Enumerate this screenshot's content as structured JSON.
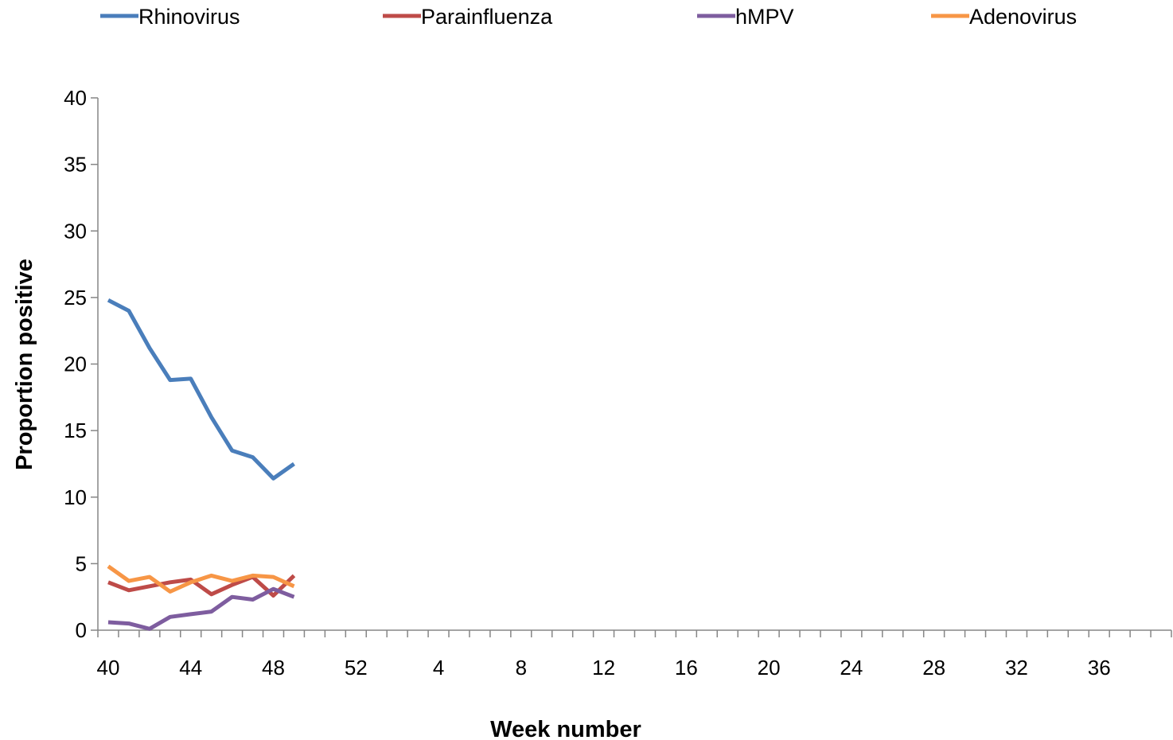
{
  "chart_data": {
    "type": "line",
    "xlabel": "Week number",
    "ylabel": "Proportion positive",
    "ylim": [
      0,
      40
    ],
    "yticks": [
      "0",
      "5",
      "10",
      "15",
      "20",
      "25",
      "30",
      "35",
      "40"
    ],
    "xtick_labels": [
      "40",
      "44",
      "48",
      "52",
      "4",
      "8",
      "12",
      "16",
      "20",
      "24",
      "28",
      "32",
      "36"
    ],
    "weeks": [
      40,
      41,
      42,
      43,
      44,
      45,
      46,
      47,
      48,
      49,
      50,
      51,
      52,
      1,
      2,
      3,
      4,
      5,
      6,
      7,
      8,
      9,
      10,
      11,
      12,
      13,
      14,
      15,
      16,
      17,
      18,
      19,
      20,
      21,
      22,
      23,
      24,
      25,
      26,
      27,
      28,
      29,
      30,
      31,
      32,
      33,
      34,
      35,
      36,
      37,
      38,
      39
    ],
    "legend_position": "top",
    "grid": false,
    "series": [
      {
        "name": "Rhinovirus",
        "color": "#4A7EBB",
        "x": [
          40,
          41,
          42,
          43,
          44,
          45,
          46,
          47,
          48,
          49
        ],
        "values": [
          24.8,
          24.0,
          21.2,
          18.8,
          18.9,
          16.0,
          13.5,
          13.0,
          11.4,
          12.5
        ]
      },
      {
        "name": "Parainfluenza",
        "color": "#BE4B48",
        "x": [
          40,
          41,
          42,
          43,
          44,
          45,
          46,
          47,
          48,
          49
        ],
        "values": [
          3.6,
          3.0,
          3.3,
          3.6,
          3.8,
          2.7,
          3.4,
          4.0,
          2.6,
          4.1
        ]
      },
      {
        "name": "hMPV",
        "color": "#7E5D9F",
        "x": [
          40,
          41,
          42,
          43,
          44,
          45,
          46,
          47,
          48,
          49
        ],
        "values": [
          0.6,
          0.5,
          0.1,
          1.0,
          1.2,
          1.4,
          2.5,
          2.3,
          3.1,
          2.5
        ]
      },
      {
        "name": "Adenovirus",
        "color": "#F79646",
        "x": [
          40,
          41,
          42,
          43,
          44,
          45,
          46,
          47,
          48,
          49
        ],
        "values": [
          4.8,
          3.7,
          4.0,
          2.9,
          3.6,
          4.1,
          3.7,
          4.1,
          4.0,
          3.3
        ]
      }
    ]
  }
}
